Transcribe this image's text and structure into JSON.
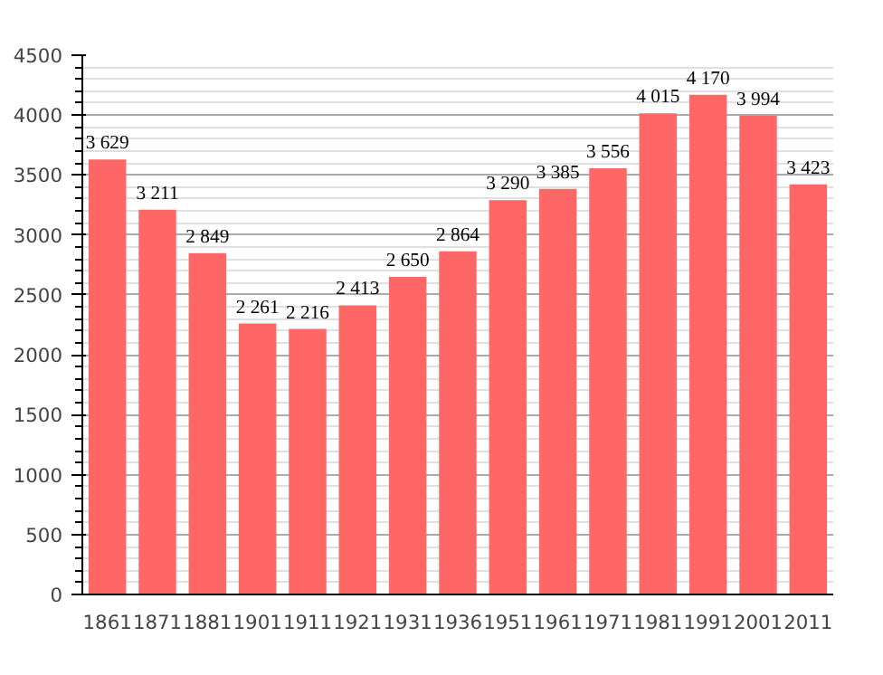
{
  "chart_data": {
    "type": "bar",
    "categories": [
      "1861",
      "1871",
      "1881",
      "1901",
      "1911",
      "1921",
      "1931",
      "1936",
      "1951",
      "1961",
      "1971",
      "1981",
      "1991",
      "2001",
      "2011"
    ],
    "values": [
      3629,
      3211,
      2849,
      2261,
      2216,
      2413,
      2650,
      2864,
      3290,
      3385,
      3556,
      4015,
      4170,
      3994,
      3423
    ],
    "value_labels": [
      "3 629",
      "3 211",
      "2 849",
      "2 261",
      "2 216",
      "2 413",
      "2 650",
      "2 864",
      "3 290",
      "3 385",
      "3 556",
      "4 015",
      "4 170",
      "3 994",
      "3 423"
    ],
    "color": "#ff6666",
    "ylim": [
      0,
      4500
    ],
    "yticks": [
      0,
      500,
      1000,
      1500,
      2000,
      2500,
      3000,
      3500,
      4000,
      4500
    ],
    "grid": "y"
  }
}
